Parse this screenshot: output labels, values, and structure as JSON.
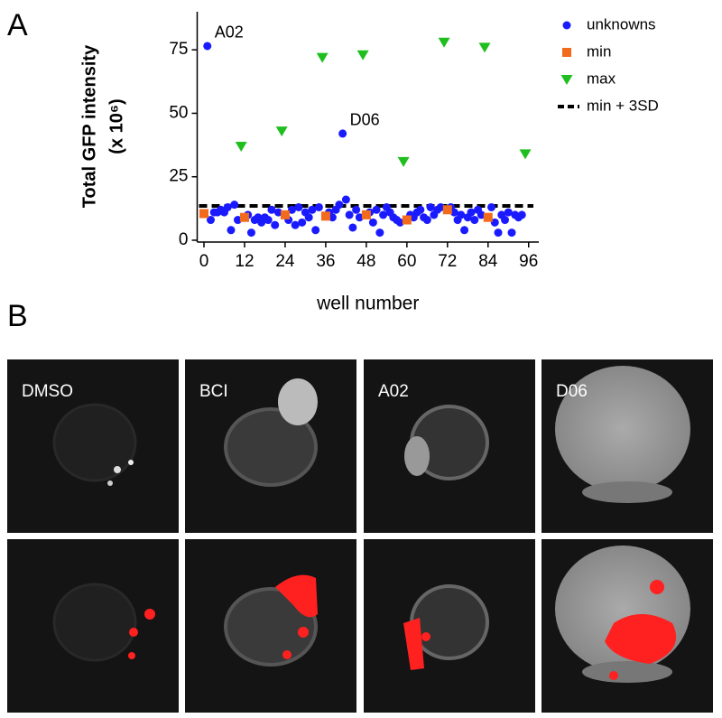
{
  "panel_labels": [
    "A",
    "B"
  ],
  "chart_data": {
    "type": "scatter",
    "ylabel": [
      "Total GFP intensity",
      "(x 10⁶)"
    ],
    "xlabel": "well number",
    "xlim": [
      -2,
      99
    ],
    "ylim": [
      0,
      90
    ],
    "xticks": [
      0,
      12,
      24,
      36,
      48,
      60,
      72,
      84,
      96
    ],
    "yticks": [
      0,
      25,
      50,
      75
    ],
    "legend": "top-right",
    "series": [
      {
        "name": "unknowns",
        "marker": "circle",
        "color": "#1a1aff",
        "x": [
          1,
          2,
          3,
          4,
          5,
          6,
          7,
          8,
          9,
          10,
          13,
          14,
          15,
          16,
          17,
          18,
          19,
          20,
          21,
          22,
          25,
          26,
          27,
          28,
          29,
          30,
          31,
          32,
          33,
          34,
          37,
          38,
          39,
          40,
          41,
          42,
          43,
          44,
          45,
          46,
          49,
          50,
          51,
          52,
          53,
          54,
          55,
          56,
          57,
          58,
          61,
          62,
          63,
          64,
          65,
          66,
          67,
          68,
          69,
          70,
          73,
          74,
          75,
          76,
          77,
          78,
          79,
          80,
          81,
          82,
          85,
          86,
          87,
          88,
          89,
          90,
          91,
          92,
          93,
          94
        ],
        "values": [
          76.5,
          8,
          11,
          11,
          12,
          11,
          13,
          4,
          14,
          8,
          10,
          3,
          8,
          9,
          7,
          9,
          8,
          12,
          6,
          11,
          8,
          12,
          6,
          13,
          7,
          11,
          9,
          12,
          4,
          13,
          11,
          9,
          12,
          14,
          42,
          16,
          10,
          5,
          12,
          9,
          11,
          7,
          12,
          3,
          10,
          13,
          11,
          9,
          8,
          7,
          10,
          9,
          11,
          12,
          9,
          8,
          13,
          10,
          12,
          13,
          13,
          11,
          8,
          10,
          4,
          9,
          11,
          8,
          12,
          10,
          13,
          7,
          3,
          10,
          8,
          11,
          3,
          10,
          9,
          10
        ]
      },
      {
        "name": "min",
        "marker": "square",
        "color": "#f26b1d",
        "x": [
          0,
          12,
          24,
          36,
          48,
          60,
          72,
          84
        ],
        "values": [
          10.5,
          9,
          10,
          9.5,
          10,
          8,
          12,
          9
        ]
      },
      {
        "name": "max",
        "marker": "triangle",
        "color": "#1fbf1f",
        "x": [
          11,
          23,
          35,
          47,
          59,
          71,
          83,
          95
        ],
        "values": [
          37,
          43,
          72,
          73,
          31,
          78,
          76,
          34
        ]
      }
    ],
    "reference_line": {
      "name": "min + 3SD",
      "value": 13.5,
      "color": "#000000"
    },
    "annotations": [
      {
        "text": "A02",
        "x": 1,
        "y": 76.5
      },
      {
        "text": "D06",
        "x": 41,
        "y": 42
      }
    ]
  },
  "images": {
    "labels": [
      "DMSO",
      "BCI",
      "A02",
      "D06"
    ]
  }
}
